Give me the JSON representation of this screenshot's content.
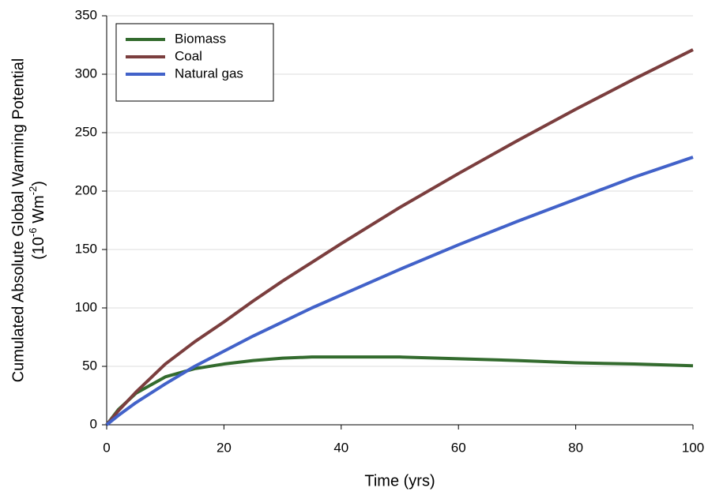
{
  "chart_data": {
    "type": "line",
    "xlabel": "Time (yrs)",
    "ylabel": "Cumulated Absolute Global Warming Potential",
    "ylabel_unit": [
      "(10",
      "-6",
      " Wm",
      "-2",
      ")"
    ],
    "x": [
      0,
      2,
      5,
      10,
      15,
      20,
      25,
      30,
      35,
      40,
      50,
      60,
      70,
      80,
      90,
      100
    ],
    "series": [
      {
        "name": "Biomass",
        "color": "#336b2e",
        "values": [
          0,
          13,
          27,
          41,
          48,
          52,
          55,
          57,
          58,
          58,
          58,
          56.5,
          55,
          53,
          52,
          50.5
        ]
      },
      {
        "name": "Coal",
        "color": "#7b3e3e",
        "values": [
          0,
          12,
          28,
          52,
          71,
          88,
          106,
          123,
          139,
          155,
          186,
          215,
          243,
          270,
          296,
          321
        ]
      },
      {
        "name": "Natural gas",
        "color": "#4262c9",
        "values": [
          0,
          8,
          19,
          35,
          50,
          63,
          76,
          88,
          100,
          111,
          133,
          154,
          174,
          193,
          212,
          229
        ]
      }
    ],
    "xlim": [
      0,
      100
    ],
    "xticks": [
      0,
      20,
      40,
      60,
      80,
      100
    ],
    "ylim": [
      0,
      350
    ],
    "yticks": [
      0,
      50,
      100,
      150,
      200,
      250,
      300,
      350
    ],
    "grid": true,
    "legend": "upper left"
  }
}
